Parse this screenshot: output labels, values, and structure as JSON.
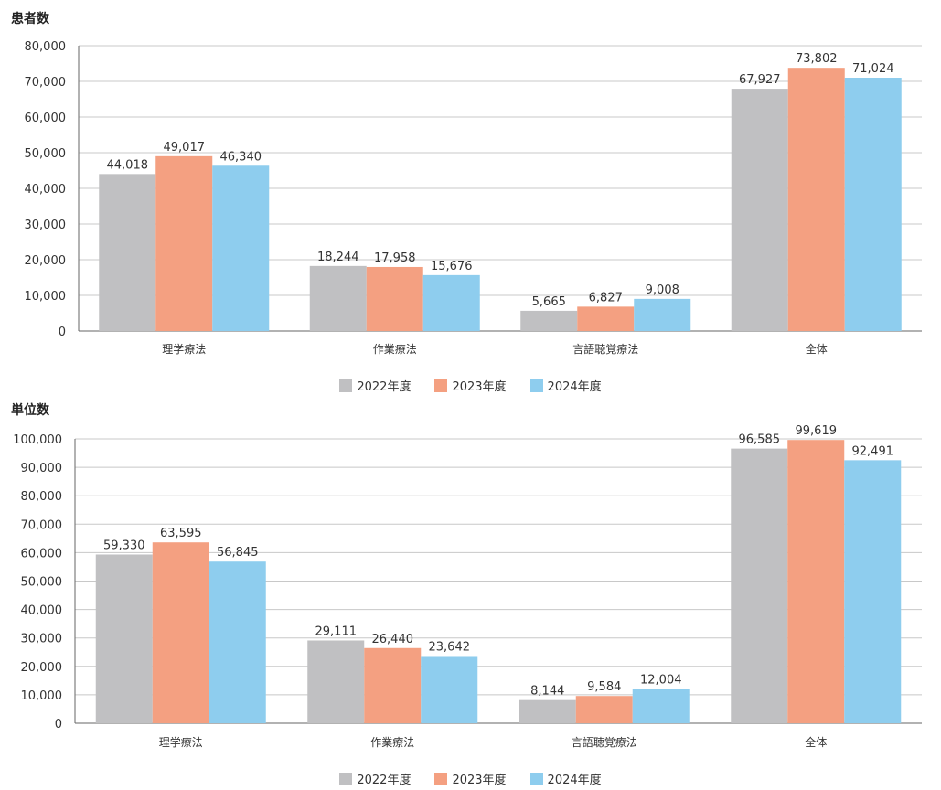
{
  "colors": {
    "2022": "#c0c0c2",
    "2023": "#f4a081",
    "2024": "#8ecdee",
    "grid": "#c8c8c8",
    "axis": "#666666"
  },
  "chart_data": [
    {
      "type": "bar",
      "title": "患者数",
      "categories": [
        "理学療法",
        "作業療法",
        "言語聴覚療法",
        "全体"
      ],
      "ylim": [
        0,
        80000
      ],
      "yticks": [
        0,
        10000,
        20000,
        30000,
        40000,
        50000,
        60000,
        70000,
        80000
      ],
      "ytick_labels": [
        "0",
        "10,000",
        "20,000",
        "30,000",
        "40,000",
        "50,000",
        "60,000",
        "70,000",
        "80,000"
      ],
      "grid": true,
      "legend": "bottom-center",
      "series": [
        {
          "name": "2022年度",
          "values": [
            44018,
            18244,
            5665,
            67927
          ],
          "labels": [
            "44,018",
            "18,244",
            "5,665",
            "67,927"
          ]
        },
        {
          "name": "2023年度",
          "values": [
            49017,
            17958,
            6827,
            73802
          ],
          "labels": [
            "49,017",
            "17,958",
            "6,827",
            "73,802"
          ]
        },
        {
          "name": "2024年度",
          "values": [
            46340,
            15676,
            9008,
            71024
          ],
          "labels": [
            "46,340",
            "15,676",
            "9,008",
            "71,024"
          ]
        }
      ]
    },
    {
      "type": "bar",
      "title": "単位数",
      "categories": [
        "理学療法",
        "作業療法",
        "言語聴覚療法",
        "全体"
      ],
      "ylim": [
        0,
        100000
      ],
      "yticks": [
        0,
        10000,
        20000,
        30000,
        40000,
        50000,
        60000,
        70000,
        80000,
        90000,
        100000
      ],
      "ytick_labels": [
        "0",
        "10,000",
        "20,000",
        "30,000",
        "40,000",
        "50,000",
        "60,000",
        "70,000",
        "80,000",
        "90,000",
        "100,000"
      ],
      "grid": true,
      "legend": "bottom-center",
      "series": [
        {
          "name": "2022年度",
          "values": [
            59330,
            29111,
            8144,
            96585
          ],
          "labels": [
            "59,330",
            "29,111",
            "8,144",
            "96,585"
          ]
        },
        {
          "name": "2023年度",
          "values": [
            63595,
            26440,
            9584,
            99619
          ],
          "labels": [
            "63,595",
            "26,440",
            "9,584",
            "99,619"
          ]
        },
        {
          "name": "2024年度",
          "values": [
            56845,
            23642,
            12004,
            92491
          ],
          "labels": [
            "56,845",
            "23,642",
            "12,004",
            "92,491"
          ]
        }
      ]
    }
  ]
}
